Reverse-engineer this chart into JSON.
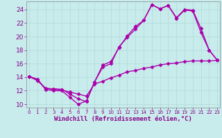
{
  "series": [
    {
      "x": [
        0,
        1,
        2,
        3,
        4,
        5,
        6,
        7,
        8,
        9,
        10,
        11,
        12,
        13,
        14,
        15,
        16,
        17,
        18,
        19,
        20,
        21,
        22,
        23
      ],
      "y": [
        14.1,
        13.7,
        12.2,
        12.0,
        12.0,
        11.0,
        10.0,
        10.5,
        13.3,
        15.5,
        16.0,
        18.5,
        19.9,
        21.1,
        22.4,
        24.7,
        24.1,
        24.6,
        22.8,
        24.0,
        23.9,
        21.2,
        18.0,
        16.5
      ]
    },
    {
      "x": [
        0,
        1,
        2,
        3,
        4,
        5,
        6,
        7,
        8,
        9,
        10,
        11,
        12,
        13,
        14,
        15,
        16,
        17,
        18,
        19,
        20,
        21,
        22,
        23
      ],
      "y": [
        14.1,
        13.7,
        12.3,
        12.3,
        12.2,
        11.5,
        10.8,
        10.4,
        13.3,
        15.8,
        16.3,
        18.4,
        20.1,
        21.5,
        22.4,
        24.7,
        24.1,
        24.6,
        22.7,
        23.9,
        23.8,
        20.6,
        18.0,
        16.5
      ]
    },
    {
      "x": [
        0,
        1,
        2,
        3,
        4,
        5,
        6,
        7,
        8,
        9,
        10,
        11,
        12,
        13,
        14,
        15,
        16,
        17,
        18,
        19,
        20,
        21,
        22,
        23
      ],
      "y": [
        14.1,
        13.5,
        12.4,
        12.2,
        12.1,
        11.8,
        11.5,
        11.2,
        13.0,
        13.4,
        13.9,
        14.3,
        14.8,
        15.0,
        15.3,
        15.5,
        15.8,
        16.0,
        16.1,
        16.3,
        16.4,
        16.4,
        16.4,
        16.5
      ]
    }
  ],
  "color": "#aa00aa",
  "marker": "D",
  "markersize": 2.5,
  "linewidth": 1.0,
  "xlim": [
    -0.3,
    23.3
  ],
  "ylim": [
    9.5,
    25.2
  ],
  "xticks": [
    0,
    1,
    2,
    3,
    4,
    5,
    6,
    7,
    8,
    9,
    10,
    11,
    12,
    13,
    14,
    15,
    16,
    17,
    18,
    19,
    20,
    21,
    22,
    23
  ],
  "yticks": [
    10,
    12,
    14,
    16,
    18,
    20,
    22,
    24
  ],
  "xlabel": "Windchill (Refroidissement éolien,°C)",
  "bg_color": "#c8ecec",
  "grid_color": "#b0d8d8",
  "tick_label_color": "#880088",
  "axis_label_color": "#880088",
  "spine_color": "#888888",
  "xlabel_fontsize": 6.5,
  "xtick_fontsize": 5.0,
  "ytick_fontsize": 6.5
}
